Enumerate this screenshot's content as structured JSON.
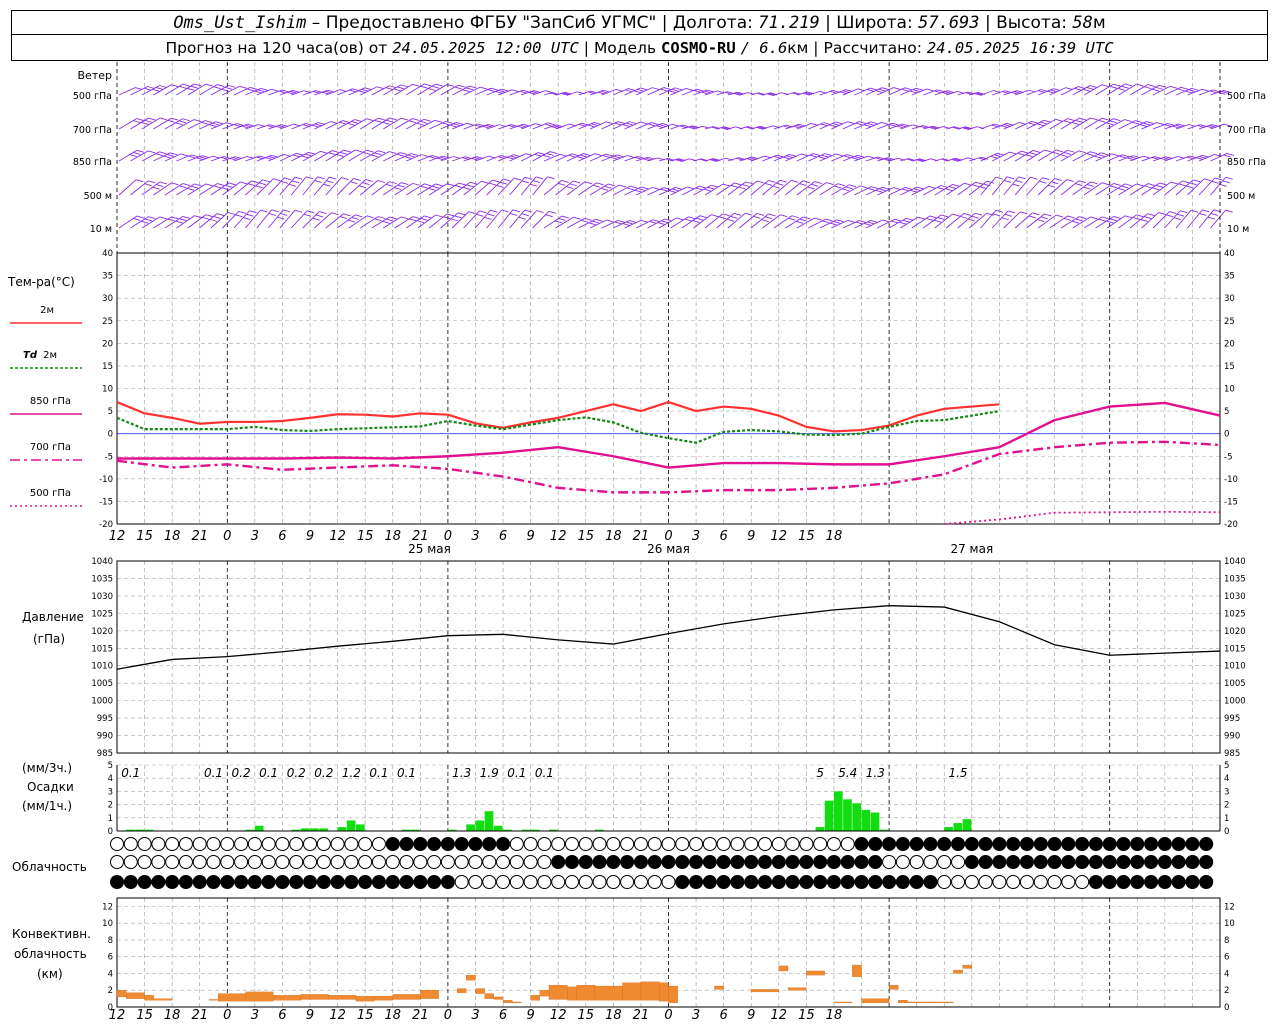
{
  "header": {
    "station": "Oms_Ust_Ishim",
    "dash": "–",
    "provided": "Предоставлено ФГБУ \"ЗапСиб УГМС\"",
    "lon_label": "Долгота:",
    "lon": "71.219",
    "lat_label": "Широта:",
    "lat": "57.693",
    "alt_label": "Высота:",
    "alt": "58",
    "alt_unit": "м",
    "forecast_label": "Прогноз на 120 часа(ов) от",
    "forecast_start": "24.05.2025 12:00 UTC",
    "model_label": "Модель",
    "model": "COSMO-RU",
    "model_res": "/ 6.6",
    "model_res_unit": "км",
    "calc_label": "Рассчитано:",
    "calc_time": "24.05.2025 16:39 UTC",
    "sep": "|"
  },
  "wind": {
    "title": "Ветер",
    "levels": [
      "500 гПа",
      "700 гПа",
      "850 гПа",
      "500 м",
      "10 м"
    ]
  },
  "temp_panel": {
    "title": "Тем-ра(°С)",
    "legend": [
      {
        "label": "2м",
        "color": "#ff3030",
        "style": "solid"
      },
      {
        "label": "Td",
        "label2": "2м",
        "color": "#118811",
        "style": "dash"
      },
      {
        "label": "850 гПа",
        "color": "#e01090",
        "style": "solid"
      },
      {
        "label": "700 гПа",
        "color": "#e01090",
        "style": "dashdot"
      },
      {
        "label": "500 гПа",
        "color": "#e01090",
        "style": "dot"
      }
    ],
    "yticks": [
      "40",
      "35",
      "30",
      "25",
      "20",
      "15",
      "10",
      "5",
      "0",
      "-5",
      "-10",
      "-15",
      "-20"
    ],
    "xticks": [
      "12",
      "15",
      "18",
      "21",
      "0",
      "3",
      "6",
      "9",
      "12",
      "15",
      "18",
      "21",
      "0",
      "3",
      "6",
      "9",
      "12",
      "15",
      "18",
      "21",
      "0",
      "3",
      "6",
      "9",
      "12",
      "15",
      "18"
    ],
    "days": [
      "25 мая",
      "26 мая",
      "27 мая"
    ]
  },
  "pressure_panel": {
    "title": "Давление",
    "unit": "(гПа)",
    "yticks": [
      "1040",
      "1035",
      "1030",
      "1025",
      "1020",
      "1015",
      "1010",
      "1005",
      "1000",
      "995",
      "990",
      "985"
    ]
  },
  "precip_panel": {
    "unit3": "(мм/3ч.)",
    "title": "Осадки",
    "unit1": "(мм/1ч.)",
    "yticks": [
      "5",
      "4",
      "3",
      "2",
      "1",
      "0"
    ],
    "labels": [
      {
        "h": 1.5,
        "t": "0.1"
      },
      {
        "h": 10.5,
        "t": "0.1"
      },
      {
        "h": 13.5,
        "t": "0.2"
      },
      {
        "h": 16.5,
        "t": "0.1"
      },
      {
        "h": 19.5,
        "t": "0.2"
      },
      {
        "h": 22.5,
        "t": "0.2"
      },
      {
        "h": 25.5,
        "t": "1.2"
      },
      {
        "h": 28.5,
        "t": "0.1"
      },
      {
        "h": 31.5,
        "t": "0.1"
      },
      {
        "h": 37.5,
        "t": "1.3"
      },
      {
        "h": 40.5,
        "t": "1.9"
      },
      {
        "h": 43.5,
        "t": "0.1"
      },
      {
        "h": 46.5,
        "t": "0.1"
      },
      {
        "h": 76.5,
        "t": "5"
      },
      {
        "h": 79.5,
        "t": "5.4"
      },
      {
        "h": 82.5,
        "t": "1.3"
      },
      {
        "h": 91.5,
        "t": "1.5"
      }
    ]
  },
  "cloud_panel": {
    "title": "Облачность"
  },
  "conv_panel": {
    "title1": "Конвективн.",
    "title2": "облачность",
    "unit": "(км)",
    "yticks": [
      "12",
      "10",
      "8",
      "6",
      "4",
      "2",
      "0"
    ]
  },
  "chart_data": [
    {
      "type": "line",
      "title": "Тем-ра(°С)",
      "x_unit": "hours from 24.05.2025 12:00 UTC",
      "ylim": [
        -20,
        40
      ],
      "series": [
        {
          "name": "2м",
          "color": "#ff3030",
          "x": [
            0,
            3,
            6,
            9,
            12,
            15,
            18,
            21,
            24,
            27,
            30,
            33,
            36,
            39,
            42,
            45,
            48,
            51,
            54,
            57,
            60,
            63,
            66,
            69,
            72,
            75,
            78,
            81,
            84,
            87,
            90,
            93,
            96
          ],
          "values": [
            7,
            4.5,
            3.5,
            2.2,
            2.6,
            2.6,
            2.8,
            3.5,
            4.3,
            4.2,
            3.8,
            4.5,
            4.2,
            2.3,
            1.3,
            2.5,
            3.5,
            5,
            6.5,
            5,
            7,
            5,
            6,
            5.5,
            4,
            1.5,
            0.5,
            0.8,
            1.8,
            4,
            5.5,
            6,
            6.5
          ]
        },
        {
          "name": "Td 2м",
          "color": "#118811",
          "x": [
            0,
            3,
            6,
            9,
            12,
            15,
            18,
            21,
            24,
            27,
            30,
            33,
            36,
            39,
            42,
            45,
            48,
            51,
            54,
            57,
            60,
            63,
            66,
            69,
            72,
            75,
            78,
            81,
            84,
            87,
            90,
            93,
            96
          ],
          "values": [
            3.5,
            1,
            1,
            1,
            1,
            1.5,
            0.8,
            0.6,
            1,
            1.2,
            1.4,
            1.6,
            2.8,
            1.8,
            1,
            2,
            3,
            3.6,
            2.5,
            0.2,
            -1,
            -2,
            0.4,
            0.8,
            0.5,
            -0.2,
            -0.3,
            0,
            1.5,
            2.8,
            3,
            4,
            5
          ]
        },
        {
          "name": "850 гПа",
          "color": "#e01090",
          "x": [
            0,
            6,
            12,
            18,
            24,
            30,
            36,
            42,
            48,
            54,
            60,
            66,
            72,
            78,
            84,
            90,
            96,
            102,
            108,
            114,
            120
          ],
          "values": [
            -5.5,
            -5.5,
            -5.5,
            -5.5,
            -5.3,
            -5.5,
            -5,
            -4.2,
            -3,
            -5,
            -7.5,
            -6.5,
            -6.5,
            -6.8,
            -6.8,
            -5,
            -3,
            3,
            6,
            6.8,
            4
          ]
        },
        {
          "name": "700 гПа",
          "color": "#e01090",
          "x": [
            0,
            6,
            12,
            18,
            24,
            30,
            36,
            42,
            48,
            54,
            60,
            66,
            72,
            78,
            84,
            90,
            96,
            102,
            108,
            114,
            120
          ],
          "values": [
            -6,
            -7.5,
            -6.8,
            -8,
            -7.5,
            -7,
            -7.8,
            -9.5,
            -12,
            -13,
            -13,
            -12.5,
            -12.5,
            -12,
            -11,
            -9,
            -4.5,
            -3,
            -2,
            -1.8,
            -2.5
          ]
        },
        {
          "name": "500 гПа",
          "color": "#e01090",
          "x": [
            90,
            96,
            102,
            108,
            114,
            120
          ],
          "values": [
            -20,
            -19,
            -17.5,
            -17.4,
            -17.3,
            -17.4
          ]
        }
      ]
    },
    {
      "type": "line",
      "title": "Давление",
      "ylabel": "(гПа)",
      "ylim": [
        985,
        1040
      ],
      "x": [
        0,
        6,
        12,
        18,
        24,
        30,
        36,
        42,
        48,
        54,
        60,
        66,
        72,
        78,
        84,
        90,
        96,
        102,
        108,
        114,
        120
      ],
      "series": [
        {
          "values": [
            1009,
            1011.8,
            1012.6,
            1014,
            1015.6,
            1017,
            1018.6,
            1019,
            1017.4,
            1016.2,
            1019.2,
            1022,
            1024.2,
            1026,
            1027.2,
            1026.8,
            1022.6,
            1016,
            1013,
            1013.6,
            1014.2
          ]
        }
      ]
    },
    {
      "type": "bar",
      "title": "Осадки",
      "ylabel": "(мм/1ч.)",
      "ylim": [
        0,
        5
      ],
      "x": [
        1,
        2,
        3,
        14,
        15,
        19,
        20,
        21,
        22,
        24,
        25,
        26,
        31,
        32,
        36,
        38,
        39,
        40,
        41,
        42,
        44,
        45,
        47,
        52,
        76,
        77,
        78,
        79,
        80,
        81,
        82,
        83,
        90,
        91,
        92
      ],
      "values": [
        0.1,
        0.1,
        0.1,
        0.1,
        0.4,
        0.1,
        0.2,
        0.2,
        0.2,
        0.3,
        0.8,
        0.5,
        0.1,
        0.1,
        0.1,
        0.5,
        0.8,
        1.5,
        0.4,
        0.1,
        0.1,
        0.1,
        0.1,
        0.1,
        0.3,
        2.3,
        3,
        2.4,
        2.1,
        1.6,
        1.4,
        0.1,
        0.3,
        0.6,
        0.9
      ]
    },
    {
      "type": "bar",
      "title": "Конвективн. облачность",
      "ylabel": "(км)",
      "ylim": [
        0,
        13
      ],
      "segments": [
        [
          0,
          1,
          1.2,
          2
        ],
        [
          1,
          3,
          1,
          1.7
        ],
        [
          3,
          4,
          0.8,
          1.4
        ],
        [
          4,
          6,
          0.8,
          1
        ],
        [
          10,
          11,
          0.8,
          0.9
        ],
        [
          11,
          14,
          0.7,
          1.6
        ],
        [
          14,
          17,
          0.7,
          1.8
        ],
        [
          17,
          20,
          0.8,
          1.4
        ],
        [
          20,
          21,
          0.9,
          1.5
        ],
        [
          21,
          23,
          0.9,
          1.5
        ],
        [
          23,
          26,
          0.9,
          1.4
        ],
        [
          26,
          28,
          0.7,
          1.3
        ],
        [
          28,
          30,
          0.8,
          1.3
        ],
        [
          30,
          33,
          0.9,
          1.5
        ],
        [
          33,
          35,
          1,
          2
        ],
        [
          37,
          38,
          1.7,
          2.2
        ],
        [
          38,
          39,
          3.2,
          3.8
        ],
        [
          39,
          40,
          1.6,
          2.2
        ],
        [
          40,
          41,
          1,
          1.6
        ],
        [
          41,
          42,
          0.9,
          1.2
        ],
        [
          42,
          43,
          0.5,
          0.8
        ],
        [
          43,
          44,
          0.5,
          0.6
        ],
        [
          45,
          46,
          0.8,
          1.4
        ],
        [
          46,
          47,
          1.3,
          2
        ],
        [
          47,
          49,
          0.9,
          2.6
        ],
        [
          49,
          50,
          0.8,
          2.4
        ],
        [
          50,
          52,
          0.8,
          2.6
        ],
        [
          52,
          55,
          0.8,
          2.5
        ],
        [
          55,
          57,
          0.8,
          2.9
        ],
        [
          57,
          59,
          0.8,
          3
        ],
        [
          59,
          60,
          0.7,
          2.9
        ],
        [
          60,
          61,
          0.5,
          2.5
        ],
        [
          65,
          66,
          2.1,
          2.5
        ],
        [
          69,
          72,
          1.8,
          2.1
        ],
        [
          72,
          73,
          4.3,
          4.9
        ],
        [
          73,
          75,
          2,
          2.3
        ],
        [
          75,
          77,
          3.8,
          4.3
        ],
        [
          78,
          80,
          0.5,
          0.6
        ],
        [
          80,
          81,
          3.6,
          5
        ],
        [
          81,
          84,
          0.5,
          1
        ],
        [
          84,
          85,
          2.1,
          2.6
        ],
        [
          85,
          86,
          0.5,
          0.8
        ],
        [
          86,
          89,
          0.5,
          0.6
        ],
        [
          89,
          91,
          0.5,
          0.6
        ],
        [
          91,
          92,
          4,
          4.4
        ],
        [
          92,
          93,
          4.6,
          5
        ]
      ]
    }
  ]
}
